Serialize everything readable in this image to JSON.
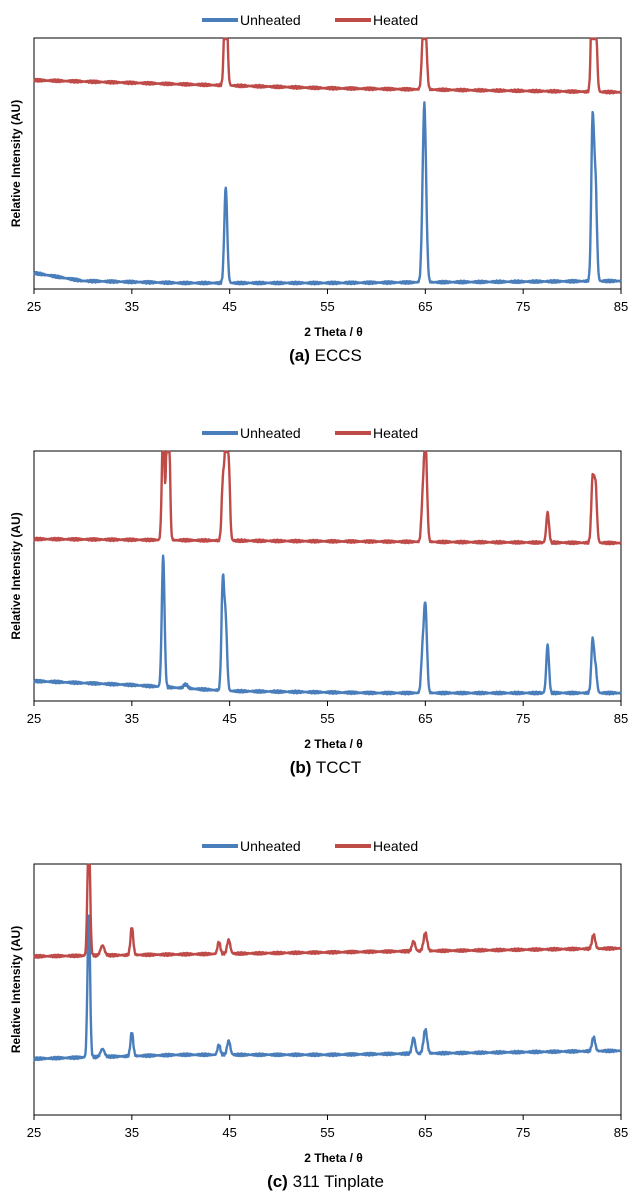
{
  "chart_data": [
    {
      "type": "line",
      "caption_prefix": "(a)",
      "caption_label": "ECCS",
      "xlabel": "2 Theta / θ",
      "ylabel": "Relative Intensity (AU)",
      "xlim": [
        25,
        85
      ],
      "x_ticks": [
        "25",
        "35",
        "45",
        "55",
        "65",
        "75",
        "85"
      ],
      "y_tick_labels_shown": false,
      "legend": {
        "position": "top-center"
      },
      "series": [
        {
          "name": "Unheated",
          "color": "#4a7ebb",
          "baseline": [
            [
              25,
              0.08
            ],
            [
              30,
              0.04
            ],
            [
              40,
              0.03
            ],
            [
              55,
              0.03
            ],
            [
              70,
              0.035
            ],
            [
              85,
              0.04
            ]
          ],
          "peaks": [
            [
              44.6,
              0.48,
              0.15
            ],
            [
              64.9,
              0.89,
              0.18
            ],
            [
              82.1,
              0.79,
              0.14
            ],
            [
              82.4,
              0.46,
              0.14
            ]
          ]
        },
        {
          "name": "Heated",
          "color": "#be4b48",
          "baseline": [
            [
              25,
              1.04
            ],
            [
              40,
              1.02
            ],
            [
              55,
              1.0
            ],
            [
              70,
              0.99
            ],
            [
              85,
              0.98
            ]
          ],
          "peaks": [
            [
              44.6,
              0.57,
              0.15
            ],
            [
              64.9,
              0.52,
              0.18
            ],
            [
              82.1,
              0.72,
              0.14
            ],
            [
              82.4,
              0.4,
              0.14
            ]
          ]
        }
      ]
    },
    {
      "type": "line",
      "caption_prefix": "(b)",
      "caption_label": "TCCT",
      "xlabel": "2 Theta / θ",
      "ylabel": "Relative Intensity (AU)",
      "xlim": [
        25,
        85
      ],
      "x_ticks": [
        "25",
        "35",
        "45",
        "55",
        "65",
        "75",
        "85"
      ],
      "y_tick_labels_shown": false,
      "legend": {
        "position": "top-center"
      },
      "series": [
        {
          "name": "Unheated",
          "color": "#4a7ebb",
          "baseline": [
            [
              25,
              0.1
            ],
            [
              35,
              0.08
            ],
            [
              45,
              0.05
            ],
            [
              60,
              0.04
            ],
            [
              85,
              0.04
            ]
          ],
          "peaks": [
            [
              38.2,
              0.66,
              0.14
            ],
            [
              40.5,
              0.02,
              0.2
            ],
            [
              44.3,
              0.54,
              0.14
            ],
            [
              44.6,
              0.33,
              0.14
            ],
            [
              64.7,
              0.17,
              0.14
            ],
            [
              65.0,
              0.44,
              0.16
            ],
            [
              77.5,
              0.24,
              0.14
            ],
            [
              82.1,
              0.26,
              0.14
            ],
            [
              82.4,
              0.12,
              0.14
            ]
          ]
        },
        {
          "name": "Heated",
          "color": "#be4b48",
          "baseline": [
            [
              25,
              0.81
            ],
            [
              50,
              0.8
            ],
            [
              85,
              0.79
            ]
          ],
          "peaks": [
            [
              38.2,
              0.58,
              0.13
            ],
            [
              38.7,
              1.06,
              0.14
            ],
            [
              44.3,
              0.27,
              0.13
            ],
            [
              44.6,
              0.47,
              0.14
            ],
            [
              44.9,
              0.37,
              0.13
            ],
            [
              64.7,
              0.15,
              0.13
            ],
            [
              65.0,
              0.53,
              0.16
            ],
            [
              77.5,
              0.15,
              0.14
            ],
            [
              82.1,
              0.31,
              0.14
            ],
            [
              82.4,
              0.28,
              0.14
            ]
          ]
        }
      ]
    },
    {
      "type": "line",
      "caption_prefix": "(c)",
      "caption_label": "311 Tinplate",
      "xlabel": "2 Theta / θ",
      "ylabel": "Relative Intensity (AU)",
      "xlim": [
        25,
        85
      ],
      "x_ticks": [
        "25",
        "35",
        "45",
        "55",
        "65",
        "75",
        "85"
      ],
      "y_tick_labels_shown": false,
      "legend": {
        "position": "top-center"
      },
      "series": [
        {
          "name": "Unheated",
          "color": "#4a7ebb",
          "baseline": [
            [
              25,
              0.28
            ],
            [
              40,
              0.3
            ],
            [
              55,
              0.3
            ],
            [
              70,
              0.31
            ],
            [
              85,
              0.32
            ]
          ],
          "peaks": [
            [
              30.6,
              0.71,
              0.13
            ],
            [
              32.0,
              0.04,
              0.2
            ],
            [
              35.0,
              0.12,
              0.14
            ],
            [
              43.9,
              0.05,
              0.14
            ],
            [
              44.9,
              0.07,
              0.16
            ],
            [
              63.8,
              0.08,
              0.16
            ],
            [
              65.0,
              0.12,
              0.18
            ],
            [
              82.2,
              0.07,
              0.16
            ]
          ]
        },
        {
          "name": "Heated",
          "color": "#be4b48",
          "baseline": [
            [
              25,
              0.79
            ],
            [
              40,
              0.8
            ],
            [
              55,
              0.81
            ],
            [
              70,
              0.82
            ],
            [
              85,
              0.83
            ]
          ],
          "peaks": [
            [
              30.6,
              0.65,
              0.13
            ],
            [
              32.0,
              0.05,
              0.2
            ],
            [
              35.0,
              0.14,
              0.14
            ],
            [
              43.9,
              0.06,
              0.14
            ],
            [
              44.9,
              0.07,
              0.16
            ],
            [
              63.8,
              0.05,
              0.16
            ],
            [
              65.0,
              0.09,
              0.18
            ],
            [
              82.2,
              0.07,
              0.16
            ]
          ]
        }
      ]
    }
  ]
}
